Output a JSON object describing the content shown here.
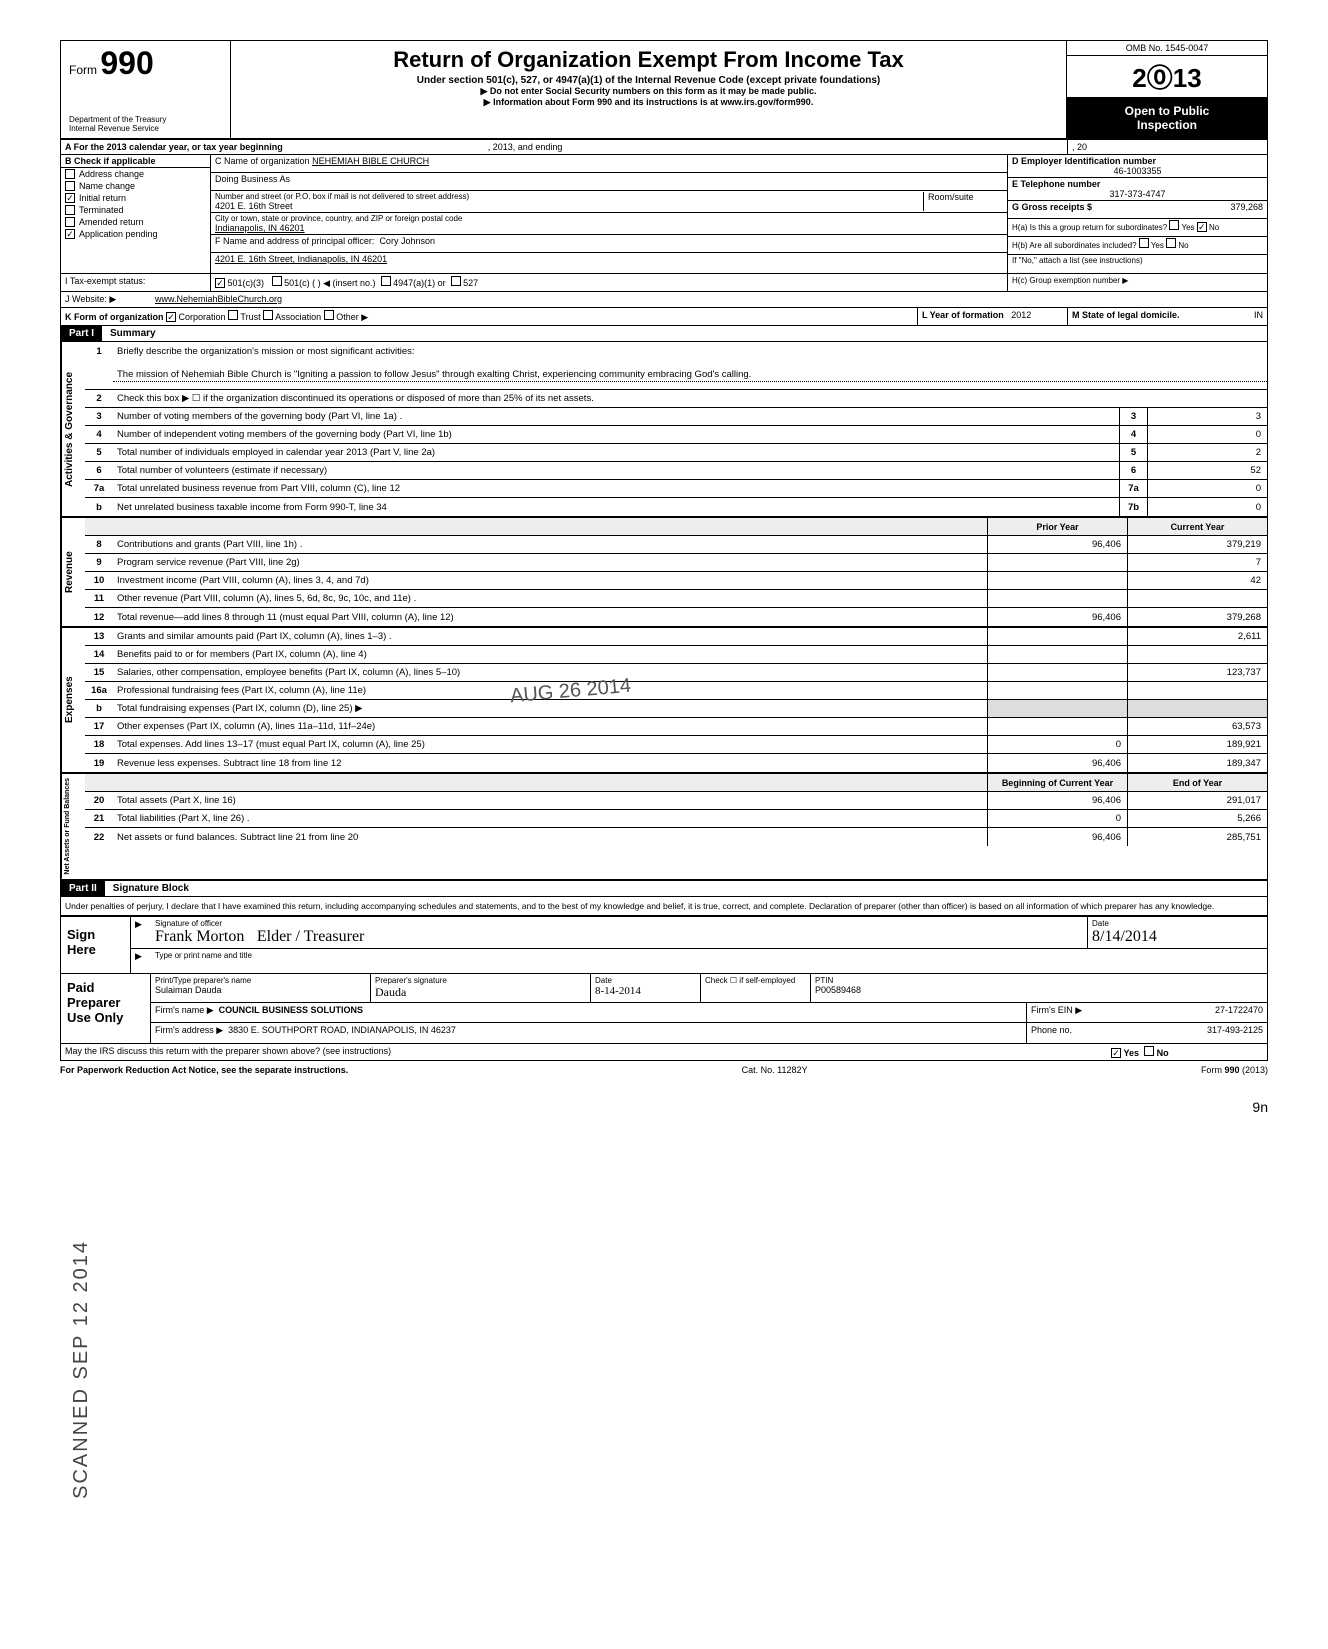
{
  "header": {
    "form_label": "Form",
    "form_number": "990",
    "title": "Return of Organization Exempt From Income Tax",
    "subtitle": "Under section 501(c), 527, or 4947(a)(1) of the Internal Revenue Code (except private foundations)",
    "instr1": "▶ Do not enter Social Security numbers on this form as it may be made public.",
    "instr2": "▶ Information about Form 990 and its instructions is at www.irs.gov/form990.",
    "dept1": "Department of the Treasury",
    "dept2": "Internal Revenue Service",
    "omb": "OMB No. 1545-0047",
    "year": "2013",
    "open": "Open to Public",
    "inspect": "Inspection"
  },
  "rowA": {
    "left": "A  For the 2013 calendar year, or tax year beginning",
    "mid": ", 2013, and ending",
    "right": ", 20"
  },
  "checks": {
    "heading": "B  Check if applicable",
    "items": [
      {
        "label": "Address change",
        "checked": false
      },
      {
        "label": "Name change",
        "checked": false
      },
      {
        "label": "Initial return",
        "checked": true
      },
      {
        "label": "Terminated",
        "checked": false
      },
      {
        "label": "Amended return",
        "checked": false
      },
      {
        "label": "Application pending",
        "checked": true
      }
    ]
  },
  "org": {
    "c_label": "C Name of organization",
    "c_name": "NEHEMIAH BIBLE CHURCH",
    "dba_label": "Doing Business As",
    "dba": "",
    "street_label": "Number and street (or P.O. box if mail is not delivered to street address)",
    "street": "4201 E. 16th Street",
    "room_label": "Room/suite",
    "city_label": "City or town, state or province, country, and ZIP or foreign postal code",
    "city": "Indianapolis, IN 46201",
    "f_label": "F Name and address of principal officer:",
    "f_name": "Cory Johnson",
    "f_addr": "4201 E. 16th Street, Indianapolis, IN  46201"
  },
  "right_col": {
    "d_label": "D Employer Identification number",
    "d_val": "46-1003355",
    "e_label": "E Telephone number",
    "e_val": "317-373-4747",
    "g_label": "G Gross receipts $",
    "g_val": "379,268",
    "ha_label": "H(a) Is this a group return for subordinates?",
    "ha_yes": "Yes",
    "ha_no": "No",
    "hb_label": "H(b) Are all subordinates included?",
    "hb_yes": "Yes",
    "hb_no": "No",
    "hb_note": "If \"No,\" attach a list (see instructions)",
    "hc_label": "H(c) Group exemption number ▶"
  },
  "tax_exempt": {
    "i_label": "I   Tax-exempt status:",
    "c501c3": "501(c)(3)",
    "c501c": "501(c) (",
    "insert": ") ◀ (insert no.)",
    "c4947": "4947(a)(1) or",
    "c527": "527",
    "j_label": "J   Website: ▶",
    "j_val": "www.NehemiahBibleChurch.org"
  },
  "rowK": {
    "label": "K  Form of organization",
    "corp": "Corporation",
    "trust": "Trust",
    "assoc": "Association",
    "other": "Other ▶",
    "l_label": "L Year of formation",
    "l_val": "2012",
    "m_label": "M State of legal domicile.",
    "m_val": "IN"
  },
  "part1": {
    "header": "Part I",
    "title": "Summary"
  },
  "governance": {
    "label": "Activities & Governance",
    "line1_label": "Briefly describe the organization's mission or most significant activities:",
    "line1_text": "The mission of Nehemiah Bible Church is \"Igniting a passion to follow Jesus\" through exalting Christ, experiencing community embracing God's calling.",
    "line2": "Check this box ▶ ☐ if the organization discontinued its operations or disposed of more than 25% of its net assets.",
    "lines": [
      {
        "n": "3",
        "desc": "Number of voting members of the governing body (Part VI, line 1a) .",
        "box": "3",
        "val": "3"
      },
      {
        "n": "4",
        "desc": "Number of independent voting members of the governing body (Part VI, line 1b)",
        "box": "4",
        "val": "0"
      },
      {
        "n": "5",
        "desc": "Total number of individuals employed in calendar year 2013 (Part V, line 2a)",
        "box": "5",
        "val": "2"
      },
      {
        "n": "6",
        "desc": "Total number of volunteers (estimate if necessary)",
        "box": "6",
        "val": "52"
      },
      {
        "n": "7a",
        "desc": "Total unrelated business revenue from Part VIII, column (C), line 12",
        "box": "7a",
        "val": "0"
      },
      {
        "n": "b",
        "desc": "Net unrelated business taxable income from Form 990-T, line 34",
        "box": "7b",
        "val": "0"
      }
    ]
  },
  "revenue": {
    "label": "Revenue",
    "header_prior": "Prior Year",
    "header_current": "Current Year",
    "lines": [
      {
        "n": "8",
        "desc": "Contributions and grants (Part VIII, line 1h) .",
        "prior": "96,406",
        "current": "379,219"
      },
      {
        "n": "9",
        "desc": "Program service revenue (Part VIII, line 2g)",
        "prior": "",
        "current": "7"
      },
      {
        "n": "10",
        "desc": "Investment income (Part VIII, column (A), lines 3, 4, and 7d)",
        "prior": "",
        "current": "42"
      },
      {
        "n": "11",
        "desc": "Other revenue (Part VIII, column (A), lines 5, 6d, 8c, 9c, 10c, and 11e) .",
        "prior": "",
        "current": ""
      },
      {
        "n": "12",
        "desc": "Total revenue—add lines 8 through 11 (must equal Part VIII, column (A), line 12)",
        "prior": "96,406",
        "current": "379,268"
      }
    ]
  },
  "expenses": {
    "label": "Expenses",
    "lines": [
      {
        "n": "13",
        "desc": "Grants and similar amounts paid (Part IX, column (A), lines 1–3) .",
        "prior": "",
        "current": "2,611"
      },
      {
        "n": "14",
        "desc": "Benefits paid to or for members (Part IX, column (A), line 4)",
        "prior": "",
        "current": ""
      },
      {
        "n": "15",
        "desc": "Salaries, other compensation, employee benefits (Part IX, column (A), lines 5–10)",
        "prior": "",
        "current": "123,737"
      },
      {
        "n": "16a",
        "desc": "Professional fundraising fees (Part IX, column (A),  line 11e)",
        "prior": "",
        "current": ""
      },
      {
        "n": "b",
        "desc": "Total fundraising expenses (Part IX, column (D), line 25) ▶",
        "prior": "shade",
        "current": "shade"
      },
      {
        "n": "17",
        "desc": "Other expenses (Part IX, column (A), lines 11a–11d, 11f–24e)",
        "prior": "",
        "current": "63,573"
      },
      {
        "n": "18",
        "desc": "Total expenses. Add lines 13–17 (must equal Part IX, column (A), line 25)",
        "prior": "0",
        "current": "189,921"
      },
      {
        "n": "19",
        "desc": "Revenue less expenses. Subtract line 18 from line 12",
        "prior": "96,406",
        "current": "189,347"
      }
    ]
  },
  "netassets": {
    "label": "Net Assets or Fund Balances",
    "header_prior": "Beginning of Current Year",
    "header_current": "End of Year",
    "lines": [
      {
        "n": "20",
        "desc": "Total assets (Part X, line 16)",
        "prior": "96,406",
        "current": "291,017"
      },
      {
        "n": "21",
        "desc": "Total liabilities (Part X, line 26) .",
        "prior": "0",
        "current": "5,266"
      },
      {
        "n": "22",
        "desc": "Net assets or fund balances. Subtract line 21 from line 20",
        "prior": "96,406",
        "current": "285,751"
      }
    ]
  },
  "part2": {
    "header": "Part II",
    "title": "Signature Block",
    "perjury": "Under penalties of perjury, I declare that I have examined this return, including accompanying schedules and statements, and to the best of my knowledge and belief, it is true, correct, and complete. Declaration of preparer (other than officer) is based on all information of which preparer has any knowledge."
  },
  "sign": {
    "here": "Sign Here",
    "sig_label": "Signature of officer",
    "sig_name": "Frank Morton",
    "sig_title_text": "Elder / Treasurer",
    "date_label": "Date",
    "date_val": "8/14/2014",
    "type_label": "Type or print name and title"
  },
  "paid": {
    "label": "Paid Preparer Use Only",
    "print_label": "Print/Type preparer's name",
    "print_val": "Sulaiman Dauda",
    "sig_label": "Preparer's signature",
    "date_label": "Date",
    "date_val": "8-14-2014",
    "check_label": "Check ☐ if self-employed",
    "ptin_label": "PTIN",
    "ptin_val": "P00589468",
    "firm_name_label": "Firm's name    ▶",
    "firm_name": "COUNCIL BUSINESS SOLUTIONS",
    "firm_ein_label": "Firm's EIN ▶",
    "firm_ein": "27-1722470",
    "firm_addr_label": "Firm's address ▶",
    "firm_addr": "3830 E. SOUTHPORT ROAD, INDIANAPOLIS, IN 46237",
    "phone_label": "Phone no.",
    "phone": "317-493-2125"
  },
  "footer": {
    "discuss": "May the IRS discuss this return with the preparer shown above? (see instructions)",
    "yes": "Yes",
    "no": "No",
    "paperwork": "For Paperwork Reduction Act Notice, see the separate instructions.",
    "cat": "Cat. No. 11282Y",
    "form": "Form 990 (2013)"
  },
  "stamps": {
    "side": "SCANNED SEP 12 2014",
    "received": "AUG 26 2014",
    "page": "9n"
  }
}
